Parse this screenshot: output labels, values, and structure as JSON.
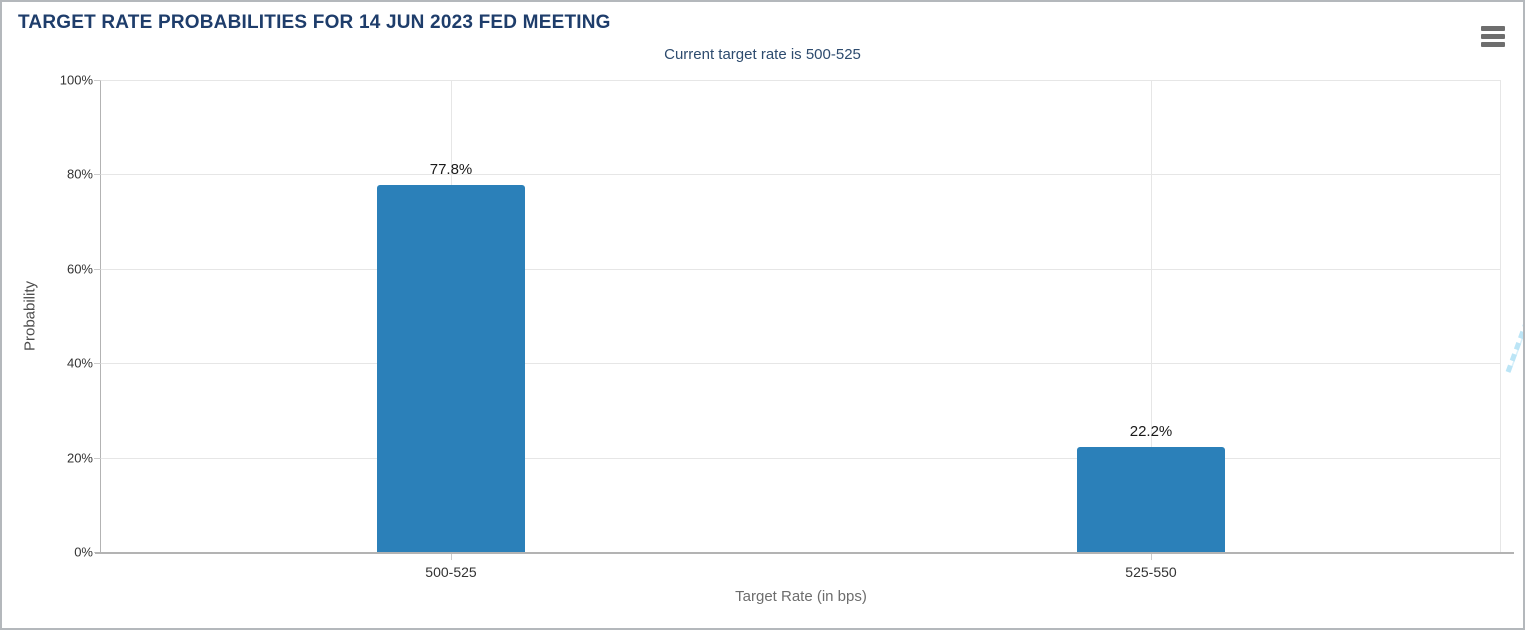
{
  "chart_data": {
    "type": "bar",
    "title": "TARGET RATE PROBABILITIES FOR 14 JUN 2023 FED MEETING",
    "subtitle": "Current target rate is 500-525",
    "categories": [
      "500-525",
      "525-550"
    ],
    "values": [
      77.8,
      22.2
    ],
    "value_labels": [
      "77.8%",
      "22.2%"
    ],
    "xlabel": "Target Rate (in bps)",
    "ylabel": "Probability",
    "ylim": [
      0,
      100
    ],
    "yticks": [
      0,
      20,
      40,
      60,
      80,
      100
    ],
    "ytick_labels": [
      "0%",
      "20%",
      "40%",
      "60%",
      "80%",
      "100%"
    ],
    "grid": true,
    "legend": "none",
    "bar_color": "#2b80b9"
  },
  "menu": {
    "icon": "hamburger-icon"
  },
  "watermark": {
    "letter": "Q"
  },
  "colors": {
    "title": "#1e3d6b",
    "subtitle": "#2d4b6e",
    "bar": "#2b80b9",
    "grid": "#e6e6e6",
    "axis": "#b3b3b3",
    "tick-label": "#333333",
    "value-label": "#1a1a1a",
    "x-axis-title": "#6d6d6d",
    "y-axis-title": "#4d4d4d",
    "menu-icon": "#6e6e6e",
    "border": "#b4b8bc",
    "watermark-gray": "#d8d8d8",
    "watermark-blue": "#bce5f6"
  }
}
